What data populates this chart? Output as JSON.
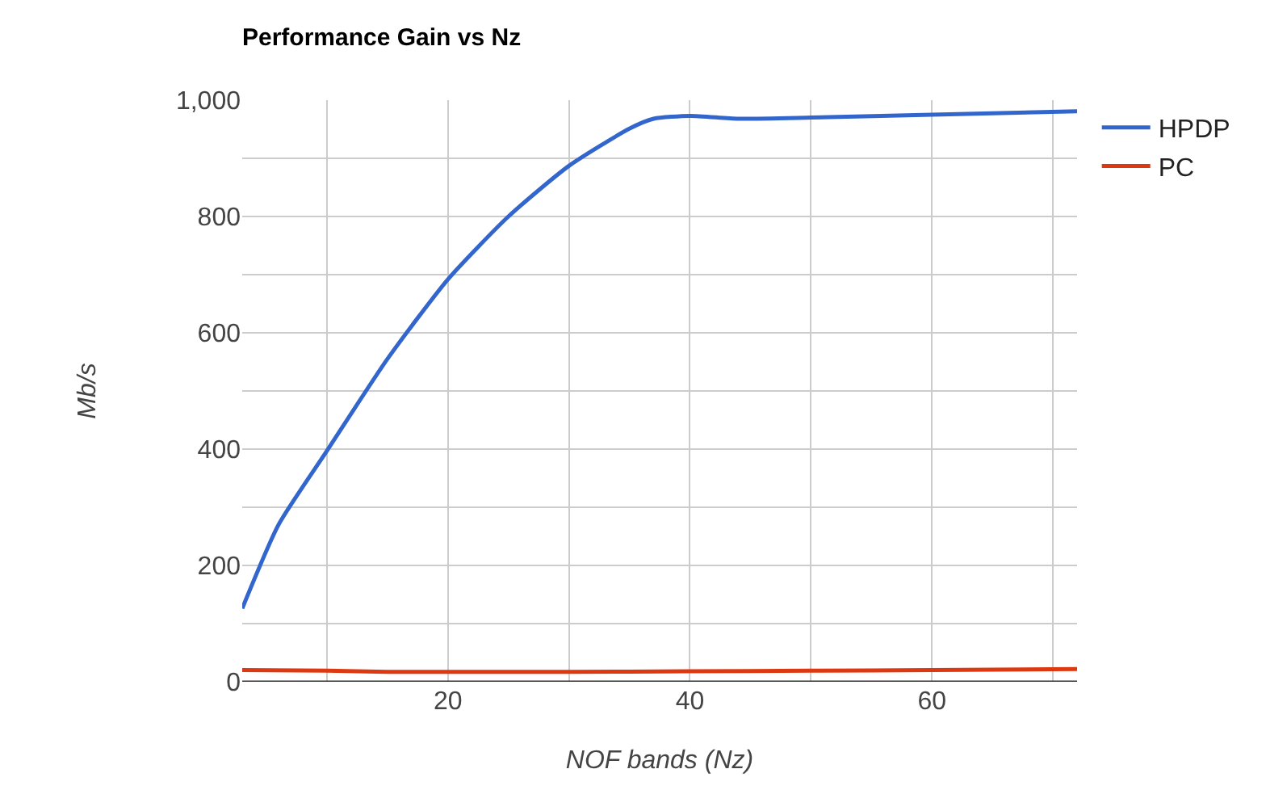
{
  "chart_data": {
    "type": "line",
    "title": "Performance Gain vs Nz",
    "xlabel": "NOF bands (Nz)",
    "ylabel": "Mb/s",
    "xlim": [
      3,
      72
    ],
    "xticks": [
      {
        "value": 10,
        "label": null
      },
      20,
      {
        "value": 30,
        "label": null
      },
      40,
      {
        "value": 50,
        "label": null
      },
      60,
      {
        "value": 70,
        "label": null
      }
    ],
    "ylim": [
      0,
      1000
    ],
    "yticks": [
      0,
      {
        "value": 100,
        "label": null
      },
      200,
      {
        "value": 300,
        "label": null
      },
      400,
      {
        "value": 500,
        "label": null
      },
      600,
      {
        "value": 700,
        "label": null
      },
      800,
      {
        "value": 900,
        "label": null
      },
      {
        "value": 1000,
        "label": "1,000"
      }
    ],
    "grid": true,
    "legend": "top right",
    "marker": "none",
    "line_style": "solid",
    "series": [
      {
        "name": "HPDP",
        "color": "#3366cc",
        "x": [
          3,
          6,
          10,
          15,
          20,
          25,
          30,
          35,
          37,
          40,
          44,
          50,
          60,
          72
        ],
        "values": [
          126,
          270,
          397,
          555,
          692,
          800,
          887,
          951,
          968,
          973,
          968,
          970,
          975,
          981
        ]
      },
      {
        "name": "PC",
        "color": "#dc3912",
        "x": [
          3,
          10,
          15,
          20,
          30,
          40,
          50,
          60,
          72
        ],
        "values": [
          20,
          19,
          17,
          17,
          17,
          18,
          19,
          20,
          22
        ]
      }
    ]
  }
}
